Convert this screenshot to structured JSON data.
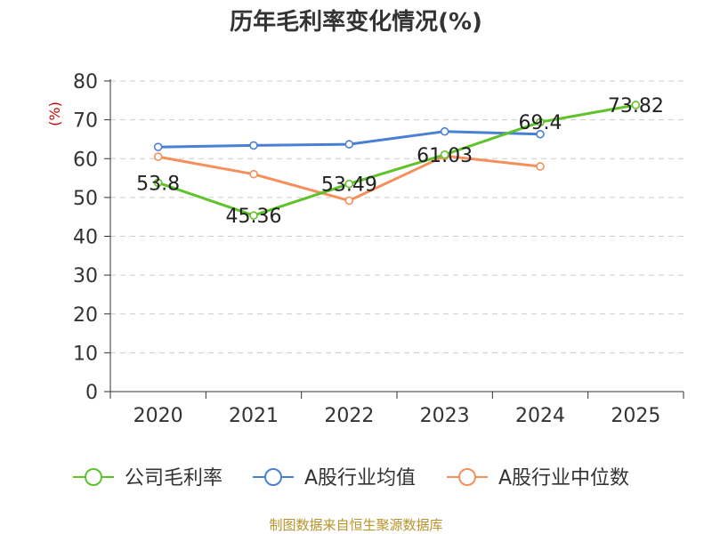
{
  "footer": "制图数据来自恒生聚源数据库",
  "chart_data": {
    "type": "line",
    "title": "历年毛利率变化情况(%)",
    "ylabel": "(%)",
    "xlabel": "",
    "ylim": [
      0,
      80
    ],
    "yticks": [
      0,
      10,
      20,
      30,
      40,
      50,
      60,
      70,
      80
    ],
    "grid": true,
    "legend_position": "bottom",
    "categories": [
      "2020",
      "2021",
      "2022",
      "2023",
      "2024",
      "2025"
    ],
    "series": [
      {
        "name": "公司毛利率",
        "color": "#5fc22a",
        "values": [
          53.8,
          45.36,
          53.49,
          61.03,
          69.4,
          73.82
        ],
        "labels": [
          "53.8",
          "45.36",
          "53.49",
          "61.03",
          "69.4",
          "73.82"
        ]
      },
      {
        "name": "A股行业均值",
        "color": "#4a7fd6",
        "values": [
          63.0,
          63.4,
          63.7,
          67.0,
          66.3,
          null
        ]
      },
      {
        "name": "A股行业中位数",
        "color": "#f58f5b",
        "values": [
          60.5,
          56.0,
          49.2,
          60.7,
          58.0,
          null
        ]
      }
    ],
    "colors": {
      "axis": "#333333",
      "grid": "#cccccc",
      "ylabel": "#cc0000"
    }
  }
}
